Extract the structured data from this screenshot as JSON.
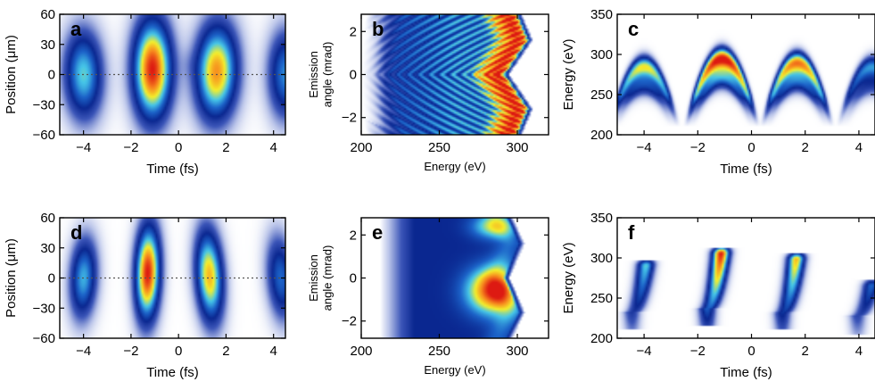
{
  "figure": {
    "colormap": [
      "#ffffff",
      "#bcc6ea",
      "#3b55b8",
      "#0a2790",
      "#1c62c8",
      "#46c6e8",
      "#f4ef2c",
      "#f78b1e",
      "#dd1a12"
    ]
  },
  "chart_data": [
    {
      "panel": "a",
      "type": "heatmap",
      "xlabel": "Time (fs)",
      "ylabel": "Position (μm)",
      "xlim": [
        -5,
        4.5
      ],
      "ylim": [
        -60,
        60
      ],
      "xticks": [
        {
          "v": -4,
          "label": "−4"
        },
        {
          "v": -2,
          "label": "−2"
        },
        {
          "v": 0,
          "label": "0"
        },
        {
          "v": 2,
          "label": "2"
        },
        {
          "v": 4,
          "label": "4"
        }
      ],
      "yticks": [
        {
          "v": 60,
          "label": "60"
        },
        {
          "v": 30,
          "label": "30"
        },
        {
          "v": 0,
          "label": "0"
        },
        {
          "v": -30,
          "label": "−30"
        },
        {
          "v": -60,
          "label": "−60"
        }
      ],
      "reference_line": {
        "y": 0,
        "style": "dotted"
      },
      "blobs": [
        {
          "x": -4.0,
          "y": 0,
          "sx": 0.55,
          "sy": 30,
          "tilt": -12,
          "peak": 0.6
        },
        {
          "x": -1.1,
          "y": 5,
          "sx": 0.55,
          "sy": 34,
          "tilt": 0,
          "peak": 1.0
        },
        {
          "x": 1.6,
          "y": 3,
          "sx": 0.6,
          "sy": 32,
          "tilt": 14,
          "peak": 0.85
        },
        {
          "x": 4.5,
          "y": 0,
          "sx": 0.5,
          "sy": 30,
          "tilt": 18,
          "peak": 0.5
        },
        {
          "x": 0.5,
          "y": 10,
          "sx": 0.3,
          "sy": 10,
          "tilt": 0,
          "peak": 0.03
        }
      ]
    },
    {
      "panel": "b",
      "type": "heatmap",
      "xlabel": "Energy (eV)",
      "ylabel": "Emission angle (mrad)",
      "xlim": [
        200,
        320
      ],
      "ylim": [
        -2.8,
        2.8
      ],
      "xticks": [
        {
          "v": 200,
          "label": "200"
        },
        {
          "v": 250,
          "label": "250"
        },
        {
          "v": 300,
          "label": "300"
        }
      ],
      "yticks": [
        {
          "v": 2,
          "label": "2"
        },
        {
          "v": 0,
          "label": "0"
        },
        {
          "v": -2,
          "label": "−2"
        }
      ],
      "pattern": "interference-fringes",
      "edge_energy_curve": [
        [
          -2.8,
          298
        ],
        [
          -1.6,
          305
        ],
        [
          0,
          290
        ],
        [
          1.6,
          305
        ],
        [
          2.8,
          298
        ]
      ]
    },
    {
      "panel": "c",
      "type": "heatmap",
      "xlabel": "Time (fs)",
      "ylabel": "Energy (eV)",
      "xlim": [
        -5,
        4.6
      ],
      "ylim": [
        200,
        350
      ],
      "xticks": [
        {
          "v": -4,
          "label": "−4"
        },
        {
          "v": -2,
          "label": "−2"
        },
        {
          "v": 0,
          "label": "0"
        },
        {
          "v": 2,
          "label": "2"
        },
        {
          "v": 4,
          "label": "4"
        }
      ],
      "yticks": [
        {
          "v": 350,
          "label": "350"
        },
        {
          "v": 300,
          "label": "300"
        },
        {
          "v": 250,
          "label": "250"
        },
        {
          "v": 200,
          "label": "200"
        }
      ],
      "arches": [
        {
          "x": -4.0,
          "peak_energy": 285,
          "peak": 0.7
        },
        {
          "x": -1.1,
          "peak_energy": 295,
          "peak": 1.0
        },
        {
          "x": 1.7,
          "peak_energy": 290,
          "peak": 0.85
        },
        {
          "x": 4.5,
          "peak_energy": 285,
          "peak": 0.5
        }
      ]
    },
    {
      "panel": "d",
      "type": "heatmap",
      "xlabel": "Time (fs)",
      "ylabel": "Position (μm)",
      "xlim": [
        -5,
        4.5
      ],
      "ylim": [
        -60,
        60
      ],
      "xticks": [
        {
          "v": -4,
          "label": "−4"
        },
        {
          "v": -2,
          "label": "−2"
        },
        {
          "v": 0,
          "label": "0"
        },
        {
          "v": 2,
          "label": "2"
        },
        {
          "v": 4,
          "label": "4"
        }
      ],
      "yticks": [
        {
          "v": 60,
          "label": "60"
        },
        {
          "v": 30,
          "label": "30"
        },
        {
          "v": 0,
          "label": "0"
        },
        {
          "v": -30,
          "label": "−30"
        },
        {
          "v": -60,
          "label": "−60"
        }
      ],
      "reference_line": {
        "y": 0,
        "style": "dotted"
      },
      "blobs": [
        {
          "x": -4.0,
          "y": 0,
          "sx": 0.38,
          "sy": 28,
          "tilt": -20,
          "peak": 0.55
        },
        {
          "x": -1.3,
          "y": 5,
          "sx": 0.35,
          "sy": 32,
          "tilt": -6,
          "peak": 1.0
        },
        {
          "x": 1.3,
          "y": 2,
          "sx": 0.38,
          "sy": 32,
          "tilt": 16,
          "peak": 0.8
        },
        {
          "x": 4.3,
          "y": 0,
          "sx": 0.38,
          "sy": 30,
          "tilt": 25,
          "peak": 0.45
        }
      ]
    },
    {
      "panel": "e",
      "type": "heatmap",
      "xlabel": "Energy (eV)",
      "ylabel": "Emission angle (mrad)",
      "xlim": [
        200,
        320
      ],
      "ylim": [
        -2.8,
        2.8
      ],
      "xticks": [
        {
          "v": 200,
          "label": "200"
        },
        {
          "v": 250,
          "label": "250"
        },
        {
          "v": 300,
          "label": "300"
        }
      ],
      "yticks": [
        {
          "v": 2,
          "label": "2"
        },
        {
          "v": 0,
          "label": "0"
        },
        {
          "v": -2,
          "label": "−2"
        }
      ],
      "pattern": "smooth",
      "edge_energy_curve": [
        [
          -2.8,
          292
        ],
        [
          -1.6,
          300
        ],
        [
          0,
          290
        ],
        [
          1.6,
          300
        ],
        [
          2.8,
          292
        ]
      ],
      "hotspot": {
        "energy": 285,
        "angle": -0.6
      }
    },
    {
      "panel": "f",
      "type": "heatmap",
      "xlabel": "Time (fs)",
      "ylabel": "Energy (eV)",
      "xlim": [
        -5,
        4.6
      ],
      "ylim": [
        200,
        350
      ],
      "xticks": [
        {
          "v": -4,
          "label": "−4"
        },
        {
          "v": -2,
          "label": "−2"
        },
        {
          "v": 0,
          "label": "0"
        },
        {
          "v": 2,
          "label": "2"
        },
        {
          "v": 4,
          "label": "4"
        }
      ],
      "yticks": [
        {
          "v": 350,
          "label": "350"
        },
        {
          "v": 300,
          "label": "300"
        },
        {
          "v": 250,
          "label": "250"
        },
        {
          "v": 200,
          "label": "200"
        }
      ],
      "streaks": [
        {
          "x": -4.0,
          "low_energy": 235,
          "high_energy": 290,
          "peak": 0.6
        },
        {
          "x": -1.2,
          "low_energy": 240,
          "high_energy": 305,
          "peak": 1.0
        },
        {
          "x": 1.6,
          "low_energy": 235,
          "high_energy": 298,
          "peak": 0.8
        },
        {
          "x": 4.4,
          "low_energy": 230,
          "high_energy": 265,
          "peak": 0.45
        }
      ]
    }
  ]
}
